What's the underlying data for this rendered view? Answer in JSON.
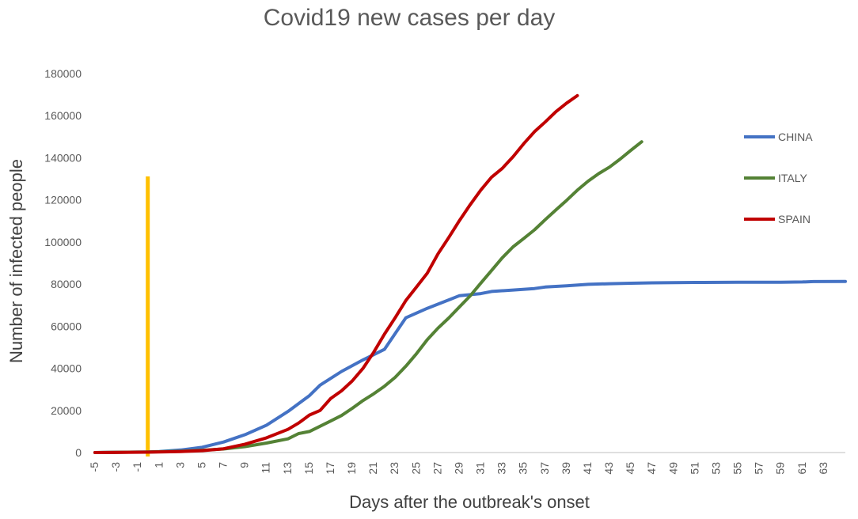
{
  "chart_data": {
    "type": "line",
    "title": "Covid19 new cases per day",
    "xlabel": "Days after the outbreak's onset",
    "ylabel": "Number of infected people",
    "xlim": [
      -5,
      64
    ],
    "ylim": [
      0,
      180000
    ],
    "y_ticks": [
      "0",
      "20000",
      "40000",
      "60000",
      "80000",
      "100000",
      "120000",
      "140000",
      "160000",
      "180000"
    ],
    "x_ticks": [
      "-5",
      "-3",
      "-1",
      "1",
      "3",
      "5",
      "7",
      "9",
      "11",
      "13",
      "15",
      "17",
      "19",
      "21",
      "23",
      "25",
      "27",
      "29",
      "31",
      "33",
      "35",
      "37",
      "39",
      "41",
      "43",
      "45",
      "47",
      "49",
      "51",
      "53",
      "55",
      "57",
      "59",
      "61",
      "63"
    ],
    "grid": false,
    "legend_position": "right",
    "marker_line": {
      "x": 0,
      "y_top": 130000,
      "color": "#FFC000"
    },
    "series": [
      {
        "name": "CHINA",
        "color": "#4472C4",
        "points": [
          [
            -5,
            0
          ],
          [
            -2,
            200
          ],
          [
            0,
            300
          ],
          [
            1,
            500
          ],
          [
            3,
            1200
          ],
          [
            5,
            2500
          ],
          [
            7,
            5000
          ],
          [
            9,
            8500
          ],
          [
            11,
            13000
          ],
          [
            13,
            19500
          ],
          [
            15,
            27000
          ],
          [
            16,
            32000
          ],
          [
            18,
            38500
          ],
          [
            20,
            44000
          ],
          [
            21,
            46500
          ],
          [
            22,
            49000
          ],
          [
            24,
            64000
          ],
          [
            26,
            68500
          ],
          [
            28,
            72500
          ],
          [
            29,
            74500
          ],
          [
            31,
            75500
          ],
          [
            32,
            76500
          ],
          [
            34,
            77200
          ],
          [
            36,
            77900
          ],
          [
            37,
            78600
          ],
          [
            39,
            79200
          ],
          [
            41,
            79900
          ],
          [
            43,
            80200
          ],
          [
            45,
            80400
          ],
          [
            47,
            80600
          ],
          [
            49,
            80700
          ],
          [
            51,
            80800
          ],
          [
            55,
            80850
          ],
          [
            59,
            80900
          ],
          [
            61,
            81000
          ],
          [
            62,
            81200
          ],
          [
            65,
            81300
          ]
        ]
      },
      {
        "name": "ITALY",
        "color": "#548235",
        "points": [
          [
            -5,
            0
          ],
          [
            0,
            300
          ],
          [
            3,
            600
          ],
          [
            5,
            1100
          ],
          [
            7,
            1700
          ],
          [
            9,
            2800
          ],
          [
            11,
            4500
          ],
          [
            13,
            6500
          ],
          [
            14,
            9000
          ],
          [
            15,
            10000
          ],
          [
            17,
            15000
          ],
          [
            18,
            17600
          ],
          [
            19,
            21000
          ],
          [
            20,
            24700
          ],
          [
            21,
            27900
          ],
          [
            22,
            31500
          ],
          [
            23,
            35700
          ],
          [
            24,
            41000
          ],
          [
            25,
            47000
          ],
          [
            26,
            53600
          ],
          [
            27,
            59100
          ],
          [
            28,
            63900
          ],
          [
            29,
            69200
          ],
          [
            30,
            74400
          ],
          [
            31,
            80500
          ],
          [
            32,
            86500
          ],
          [
            33,
            92500
          ],
          [
            34,
            97700
          ],
          [
            35,
            101700
          ],
          [
            36,
            105800
          ],
          [
            37,
            110600
          ],
          [
            38,
            115200
          ],
          [
            39,
            119800
          ],
          [
            40,
            124600
          ],
          [
            41,
            128900
          ],
          [
            42,
            132500
          ],
          [
            43,
            135600
          ],
          [
            44,
            139400
          ],
          [
            45,
            143600
          ],
          [
            46,
            147600
          ]
        ]
      },
      {
        "name": "SPAIN",
        "color": "#C00000",
        "points": [
          [
            -5,
            0
          ],
          [
            0,
            200
          ],
          [
            3,
            500
          ],
          [
            5,
            900
          ],
          [
            7,
            1800
          ],
          [
            9,
            4000
          ],
          [
            11,
            7000
          ],
          [
            13,
            11000
          ],
          [
            14,
            14000
          ],
          [
            15,
            17800
          ],
          [
            16,
            20000
          ],
          [
            17,
            25700
          ],
          [
            18,
            29300
          ],
          [
            19,
            34000
          ],
          [
            20,
            40000
          ],
          [
            21,
            47600
          ],
          [
            22,
            56200
          ],
          [
            23,
            64000
          ],
          [
            24,
            72200
          ],
          [
            25,
            78700
          ],
          [
            26,
            85200
          ],
          [
            27,
            94400
          ],
          [
            28,
            102100
          ],
          [
            29,
            110200
          ],
          [
            30,
            117700
          ],
          [
            31,
            124700
          ],
          [
            32,
            130800
          ],
          [
            33,
            135000
          ],
          [
            34,
            140500
          ],
          [
            35,
            146700
          ],
          [
            36,
            152400
          ],
          [
            37,
            157000
          ],
          [
            38,
            161900
          ],
          [
            39,
            166000
          ],
          [
            40,
            169500
          ]
        ]
      }
    ]
  }
}
